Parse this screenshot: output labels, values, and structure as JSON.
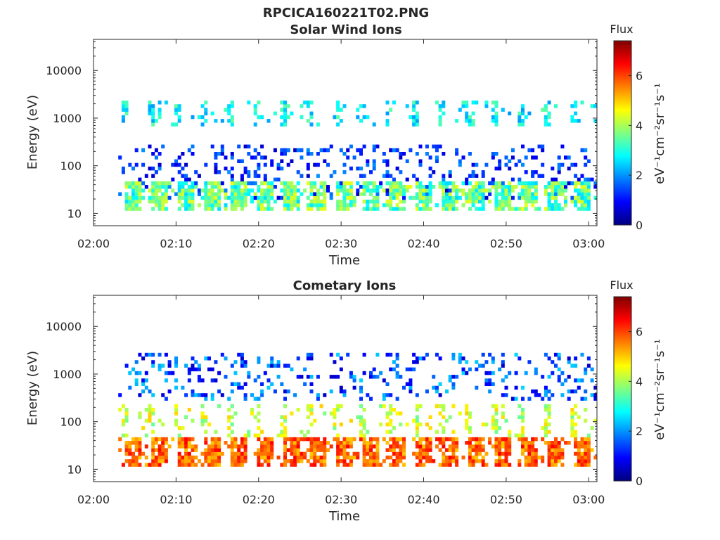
{
  "figure": {
    "title": "RPCICA160221T02.PNG"
  },
  "chart_data": [
    {
      "type": "heatmap",
      "title": "Solar Wind Ions",
      "xlabel": "Time",
      "ylabel": "Energy (eV)",
      "xticks": [
        "02:00",
        "02:10",
        "02:20",
        "02:30",
        "02:40",
        "02:50",
        "03:00"
      ],
      "xlim": [
        "02:00",
        "03:01"
      ],
      "yscale": "log",
      "yticks": [
        "10",
        "100",
        "1000",
        "10000"
      ],
      "ylim": [
        5.5,
        45000
      ],
      "colorbar": {
        "title": "Flux",
        "label": "eV⁻¹cm⁻²sr⁻¹s⁻¹",
        "ticks": [
          "0",
          "2",
          "4",
          "6"
        ],
        "range": [
          0,
          7.4
        ],
        "colormap": "jet"
      },
      "data_start": "02:03",
      "data_end": "03:01",
      "sweep_period_min": 3.2,
      "bands": [
        {
          "energy_range_ev": [
            12,
            50
          ],
          "flux_range": [
            2.5,
            4.5
          ],
          "description": "low energy band, bursts each sweep"
        },
        {
          "energy_range_ev": [
            700,
            2500
          ],
          "flux_range": [
            2.0,
            3.5
          ],
          "description": "solar wind peak"
        },
        {
          "energy_range_ev": [
            20,
            300
          ],
          "flux_range": [
            0.5,
            2.0
          ],
          "description": "sparse low flux"
        }
      ],
      "grid": false
    },
    {
      "type": "heatmap",
      "title": "Cometary Ions",
      "xlabel": "Time",
      "ylabel": "Energy (eV)",
      "xticks": [
        "02:00",
        "02:10",
        "02:20",
        "02:30",
        "02:40",
        "02:50",
        "03:00"
      ],
      "xlim": [
        "02:00",
        "03:01"
      ],
      "yscale": "log",
      "yticks": [
        "10",
        "100",
        "1000",
        "10000"
      ],
      "ylim": [
        5.5,
        45000
      ],
      "colorbar": {
        "title": "Flux",
        "label": "eV⁻¹cm⁻²sr⁻¹s⁻¹",
        "ticks": [
          "0",
          "2",
          "4",
          "6"
        ],
        "range": [
          0,
          7.4
        ],
        "colormap": "jet"
      },
      "data_start": "02:03",
      "data_end": "03:01",
      "sweep_period_min": 3.2,
      "bands": [
        {
          "energy_range_ev": [
            12,
            45
          ],
          "flux_range": [
            5.0,
            6.5
          ],
          "description": "intense low energy cometary ions"
        },
        {
          "energy_range_ev": [
            50,
            250
          ],
          "flux_range": [
            3.5,
            5.0
          ],
          "description": "dispersed arcs"
        },
        {
          "energy_range_ev": [
            300,
            3000
          ],
          "flux_range": [
            0.5,
            2.5
          ],
          "description": "sparse high energy"
        }
      ],
      "grid": false
    }
  ]
}
